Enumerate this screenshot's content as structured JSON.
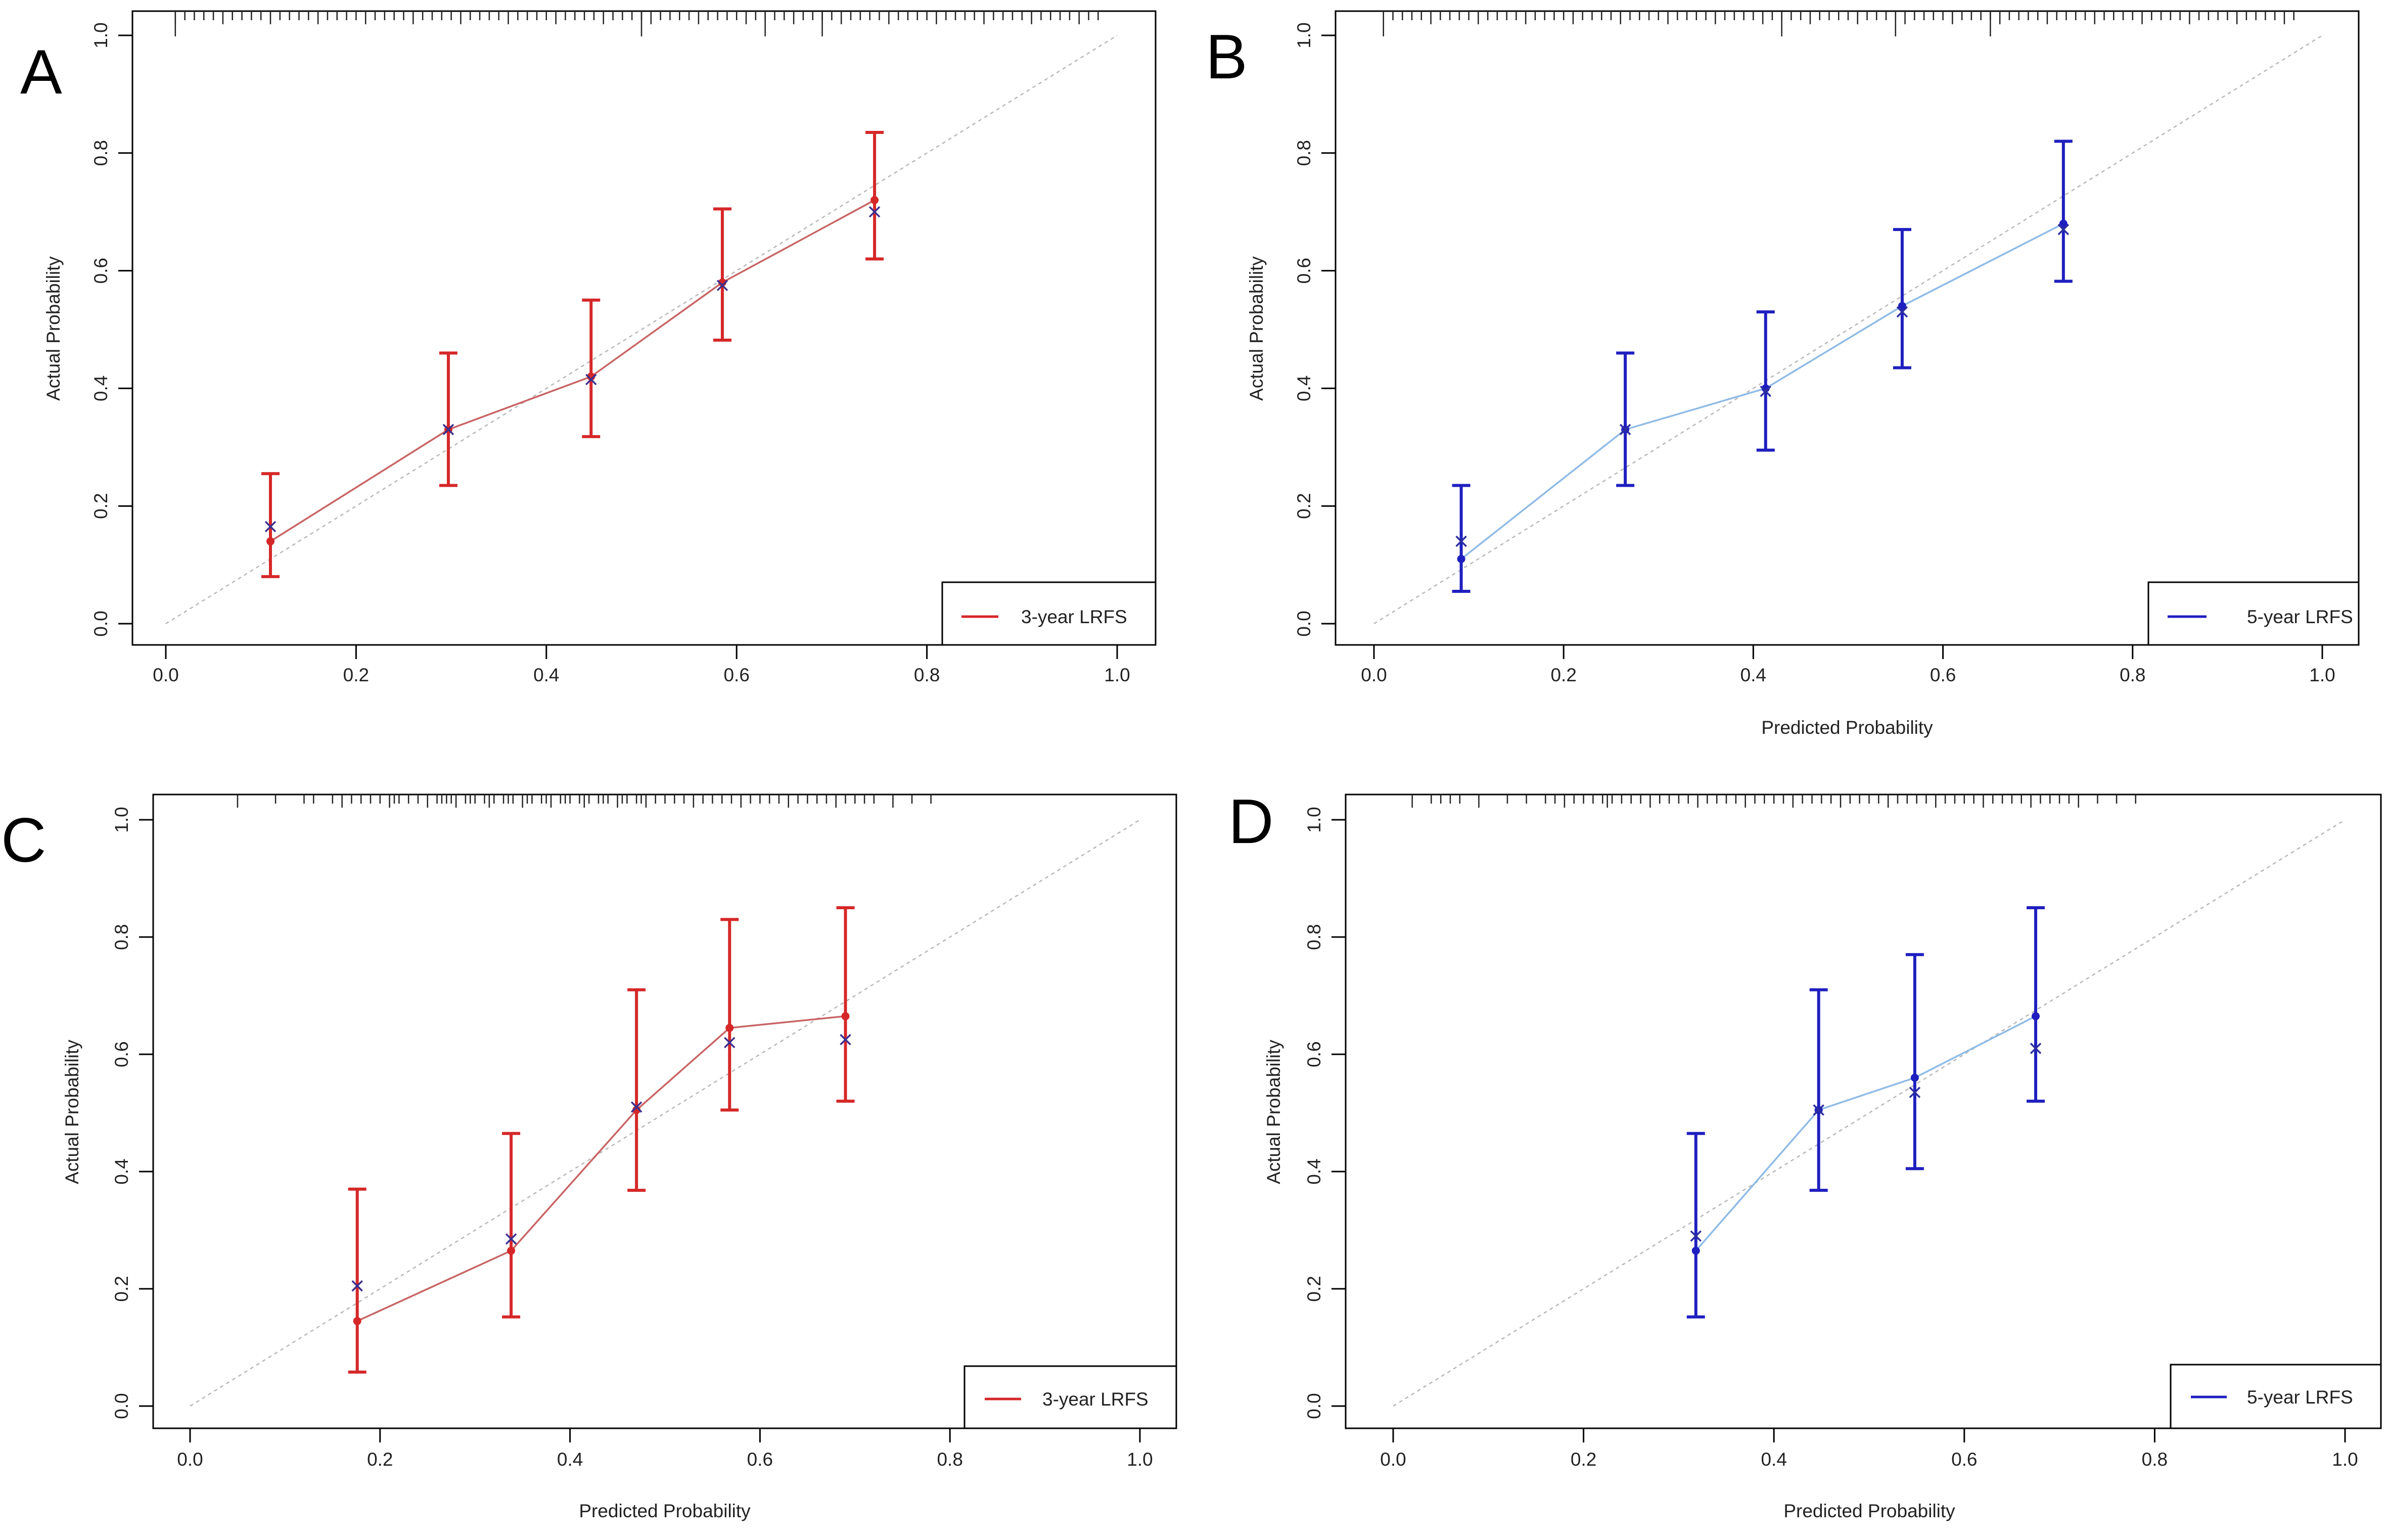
{
  "chart_data": [
    {
      "panel": "A",
      "type": "line",
      "xlabel": "",
      "ylabel": "Actual Probability",
      "xlim": [
        0.0,
        1.0
      ],
      "ylim": [
        0.0,
        1.0
      ],
      "x_ticks": [
        "0.0",
        "0.2",
        "0.4",
        "0.6",
        "0.8",
        "1.0"
      ],
      "y_ticks": [
        "0.0",
        "0.2",
        "0.4",
        "0.6",
        "0.8",
        "1.0"
      ],
      "legend": {
        "label": "3-year LRFS",
        "position": "bottom-right"
      },
      "color": "#d62728",
      "line_color": "#c86464",
      "cross_color": "#3b2f8f",
      "x": [
        0.11,
        0.297,
        0.447,
        0.585,
        0.745
      ],
      "observed": [
        0.14,
        0.33,
        0.42,
        0.58,
        0.72
      ],
      "bias_corrected": [
        0.165,
        0.33,
        0.415,
        0.575,
        0.7
      ],
      "ci_lower": [
        0.08,
        0.235,
        0.318,
        0.482,
        0.62
      ],
      "ci_upper": [
        0.255,
        0.46,
        0.55,
        0.705,
        0.835
      ],
      "rug": [
        0.01,
        0.02,
        0.03,
        0.04,
        0.05,
        0.06,
        0.07,
        0.08,
        0.09,
        0.1,
        0.11,
        0.12,
        0.13,
        0.14,
        0.15,
        0.16,
        0.17,
        0.18,
        0.19,
        0.2,
        0.21,
        0.22,
        0.23,
        0.24,
        0.25,
        0.26,
        0.27,
        0.28,
        0.29,
        0.3,
        0.31,
        0.32,
        0.33,
        0.34,
        0.35,
        0.36,
        0.37,
        0.38,
        0.39,
        0.4,
        0.41,
        0.42,
        0.43,
        0.44,
        0.45,
        0.46,
        0.47,
        0.48,
        0.49,
        0.5,
        0.51,
        0.52,
        0.53,
        0.54,
        0.55,
        0.56,
        0.57,
        0.58,
        0.59,
        0.6,
        0.61,
        0.62,
        0.63,
        0.64,
        0.65,
        0.66,
        0.67,
        0.68,
        0.69,
        0.7,
        0.71,
        0.72,
        0.73,
        0.74,
        0.75,
        0.76,
        0.77,
        0.78,
        0.79,
        0.8,
        0.81,
        0.82,
        0.83,
        0.84,
        0.85,
        0.86,
        0.87,
        0.88,
        0.89,
        0.9,
        0.91,
        0.92,
        0.93,
        0.94,
        0.95,
        0.96,
        0.97,
        0.98
      ],
      "rug_long": [
        0.01,
        0.5,
        0.63,
        0.69
      ]
    },
    {
      "panel": "B",
      "type": "line",
      "xlabel": "Predicted Probability",
      "ylabel": "Actual Probability",
      "xlim": [
        0.0,
        1.0
      ],
      "ylim": [
        0.0,
        1.0
      ],
      "x_ticks": [
        "0.0",
        "0.2",
        "0.4",
        "0.6",
        "0.8",
        "1.0"
      ],
      "y_ticks": [
        "0.0",
        "0.2",
        "0.4",
        "0.6",
        "0.8",
        "1.0"
      ],
      "legend": {
        "label": "5-year LRFS",
        "position": "bottom-right"
      },
      "color": "#1f1fbf",
      "line_color": "#8fbbe6",
      "cross_color": "#2d2d9f",
      "x": [
        0.092,
        0.265,
        0.413,
        0.557,
        0.727
      ],
      "observed": [
        0.11,
        0.33,
        0.4,
        0.54,
        0.68
      ],
      "bias_corrected": [
        0.14,
        0.33,
        0.395,
        0.53,
        0.67
      ],
      "ci_lower": [
        0.055,
        0.235,
        0.295,
        0.435,
        0.582
      ],
      "ci_upper": [
        0.235,
        0.46,
        0.53,
        0.67,
        0.82
      ],
      "rug": [
        0.01,
        0.02,
        0.03,
        0.04,
        0.05,
        0.06,
        0.07,
        0.08,
        0.09,
        0.1,
        0.11,
        0.12,
        0.13,
        0.14,
        0.15,
        0.16,
        0.17,
        0.18,
        0.19,
        0.2,
        0.21,
        0.22,
        0.23,
        0.24,
        0.25,
        0.26,
        0.27,
        0.28,
        0.29,
        0.3,
        0.31,
        0.32,
        0.33,
        0.34,
        0.35,
        0.36,
        0.37,
        0.38,
        0.39,
        0.4,
        0.41,
        0.42,
        0.43,
        0.44,
        0.45,
        0.46,
        0.47,
        0.48,
        0.49,
        0.5,
        0.51,
        0.52,
        0.53,
        0.54,
        0.55,
        0.56,
        0.57,
        0.58,
        0.59,
        0.6,
        0.61,
        0.62,
        0.63,
        0.64,
        0.65,
        0.66,
        0.67,
        0.68,
        0.69,
        0.7,
        0.71,
        0.72,
        0.73,
        0.74,
        0.75,
        0.76,
        0.77,
        0.78,
        0.79,
        0.8,
        0.81,
        0.82,
        0.83,
        0.84,
        0.85,
        0.86,
        0.87,
        0.88,
        0.89,
        0.9,
        0.91,
        0.92,
        0.93,
        0.94,
        0.95,
        0.96,
        0.97
      ],
      "rug_long": [
        0.01,
        0.43,
        0.55,
        0.65
      ]
    },
    {
      "panel": "C",
      "type": "line",
      "xlabel": "Predicted Probability",
      "ylabel": "Actual Probability",
      "xlim": [
        0.0,
        1.0
      ],
      "ylim": [
        0.0,
        1.0
      ],
      "x_ticks": [
        "0.0",
        "0.2",
        "0.4",
        "0.6",
        "0.8",
        "1.0"
      ],
      "y_ticks": [
        "0.0",
        "0.2",
        "0.4",
        "0.6",
        "0.8",
        "1.0"
      ],
      "legend": {
        "label": "3-year LRFS",
        "position": "bottom-right"
      },
      "color": "#d62728",
      "line_color": "#c86464",
      "cross_color": "#3b2f8f",
      "x": [
        0.176,
        0.338,
        0.47,
        0.568,
        0.69
      ],
      "observed": [
        0.145,
        0.265,
        0.505,
        0.645,
        0.665
      ],
      "bias_corrected": [
        0.205,
        0.285,
        0.51,
        0.62,
        0.625
      ],
      "ci_lower": [
        0.058,
        0.152,
        0.368,
        0.505,
        0.52
      ],
      "ci_upper": [
        0.37,
        0.465,
        0.71,
        0.83,
        0.85
      ],
      "rug": [
        0.05,
        0.09,
        0.12,
        0.13,
        0.15,
        0.16,
        0.17,
        0.18,
        0.19,
        0.2,
        0.21,
        0.215,
        0.22,
        0.23,
        0.24,
        0.25,
        0.26,
        0.265,
        0.27,
        0.275,
        0.28,
        0.29,
        0.295,
        0.3,
        0.31,
        0.315,
        0.32,
        0.33,
        0.335,
        0.34,
        0.35,
        0.355,
        0.36,
        0.37,
        0.375,
        0.38,
        0.39,
        0.395,
        0.4,
        0.41,
        0.415,
        0.42,
        0.43,
        0.435,
        0.44,
        0.45,
        0.455,
        0.46,
        0.47,
        0.475,
        0.48,
        0.49,
        0.5,
        0.51,
        0.52,
        0.53,
        0.54,
        0.55,
        0.56,
        0.57,
        0.58,
        0.59,
        0.6,
        0.61,
        0.62,
        0.63,
        0.64,
        0.65,
        0.66,
        0.67,
        0.68,
        0.69,
        0.7,
        0.71,
        0.72,
        0.74,
        0.76,
        0.78
      ],
      "rug_long": []
    },
    {
      "panel": "D",
      "type": "line",
      "xlabel": "Predicted Probability",
      "ylabel": "Actual Probability",
      "xlim": [
        0.0,
        1.0
      ],
      "ylim": [
        0.0,
        1.0
      ],
      "x_ticks": [
        "0.0",
        "0.2",
        "0.4",
        "0.6",
        "0.8",
        "1.0"
      ],
      "y_ticks": [
        "0.0",
        "0.2",
        "0.4",
        "0.6",
        "0.8",
        "1.0"
      ],
      "legend": {
        "label": "5-year LRFS",
        "position": "bottom-right"
      },
      "color": "#1f1fbf",
      "line_color": "#8fbbe6",
      "cross_color": "#2d2d9f",
      "x": [
        0.318,
        0.447,
        0.548,
        0.675
      ],
      "observed": [
        0.265,
        0.505,
        0.56,
        0.665
      ],
      "bias_corrected": [
        0.29,
        0.505,
        0.535,
        0.61
      ],
      "ci_lower": [
        0.152,
        0.368,
        0.405,
        0.52
      ],
      "ci_upper": [
        0.465,
        0.71,
        0.77,
        0.85
      ],
      "rug": [
        0.02,
        0.04,
        0.05,
        0.06,
        0.07,
        0.09,
        0.12,
        0.14,
        0.16,
        0.17,
        0.18,
        0.19,
        0.2,
        0.21,
        0.22,
        0.225,
        0.23,
        0.24,
        0.25,
        0.26,
        0.27,
        0.28,
        0.29,
        0.3,
        0.31,
        0.32,
        0.33,
        0.34,
        0.35,
        0.36,
        0.37,
        0.38,
        0.39,
        0.4,
        0.41,
        0.42,
        0.43,
        0.44,
        0.45,
        0.46,
        0.47,
        0.48,
        0.49,
        0.5,
        0.51,
        0.52,
        0.53,
        0.54,
        0.55,
        0.56,
        0.57,
        0.58,
        0.59,
        0.6,
        0.61,
        0.62,
        0.63,
        0.64,
        0.65,
        0.66,
        0.67,
        0.68,
        0.69,
        0.7,
        0.71,
        0.72,
        0.74,
        0.76,
        0.78
      ],
      "rug_long": []
    }
  ]
}
